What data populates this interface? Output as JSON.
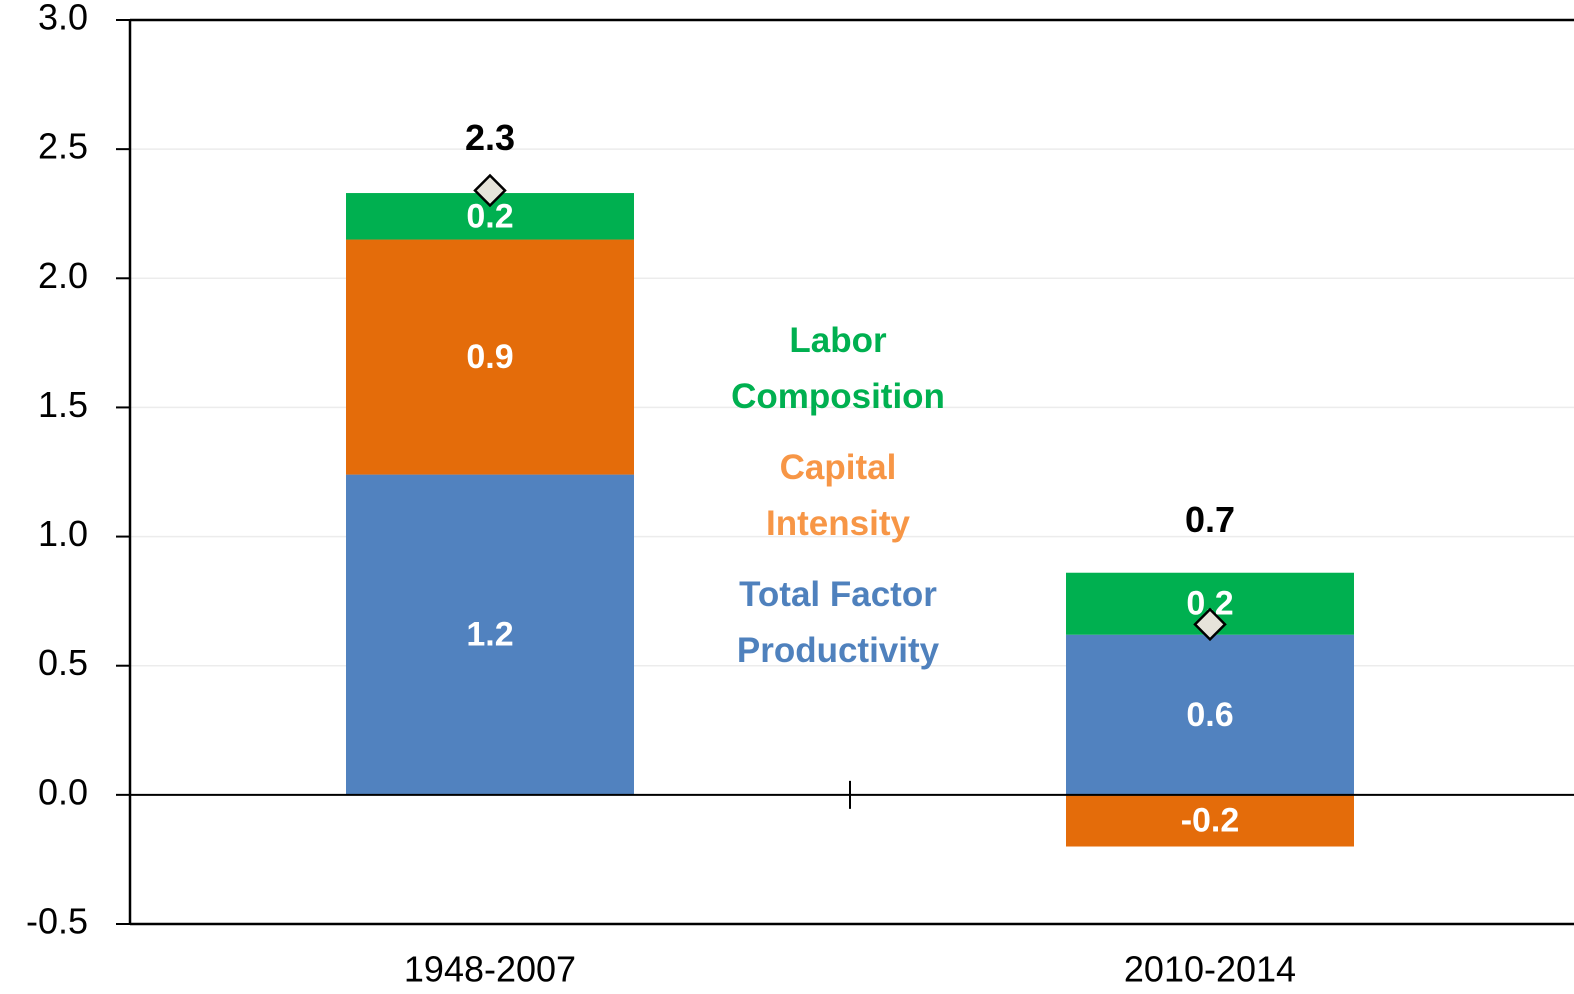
{
  "chart_data": {
    "type": "stacked-bar",
    "categories": [
      "1948-2007",
      "2010-2014"
    ],
    "series": [
      {
        "name": "Total Factor Productivity",
        "color": "#5182bf",
        "text_color": "#4f81bd",
        "values": [
          1.24,
          0.62
        ],
        "value_labels": [
          "1.2",
          "0.6"
        ]
      },
      {
        "name": "Capital Intensity",
        "color": "#e46c0a",
        "text_color": "#f79646",
        "values": [
          0.91,
          -0.2
        ],
        "value_labels": [
          "0.9",
          "-0.2"
        ]
      },
      {
        "name": "Labor Composition",
        "color": "#00b050",
        "text_color": "#00b050",
        "values": [
          0.18,
          0.24
        ],
        "value_labels": [
          "0.2",
          "0.2"
        ]
      }
    ],
    "totals": {
      "values": [
        2.34,
        0.66
      ],
      "value_labels": [
        "2.3",
        "0.7"
      ]
    },
    "ylim": [
      -0.5,
      3.0
    ],
    "yticks": [
      -0.5,
      {
        "value": 0,
        "label": "0.0"
      },
      0.5,
      {
        "value": 1,
        "label": "1.0"
      },
      1.5,
      {
        "value": 2,
        "label": "2.0"
      },
      2.5,
      {
        "value": 3,
        "label": "3.0"
      }
    ],
    "grid": true
  }
}
